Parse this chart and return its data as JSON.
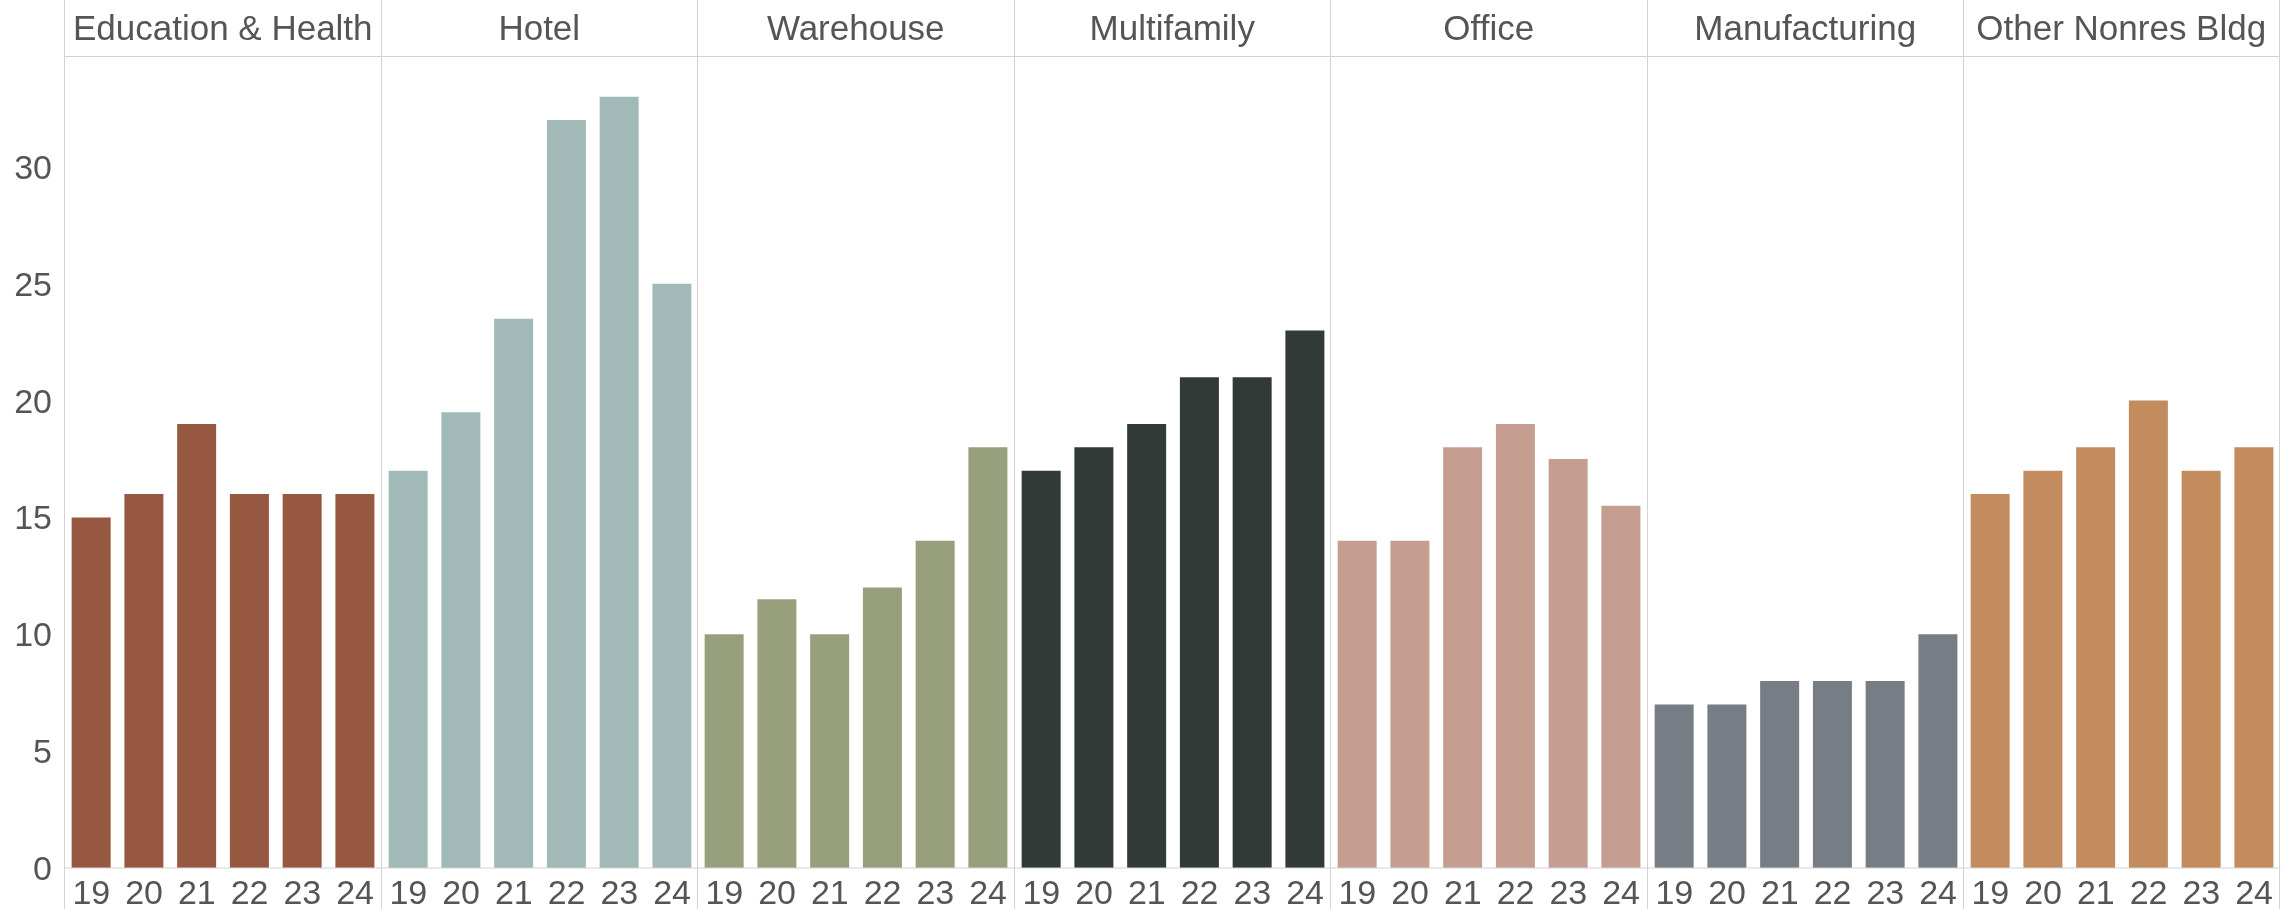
{
  "chart_data": [
    {
      "type": "bar",
      "title": "Education & Health",
      "categories": [
        "19",
        "20",
        "21",
        "22",
        "23",
        "24"
      ],
      "values": [
        15,
        16,
        19,
        16,
        16,
        16
      ],
      "color": "#965840",
      "ylim": [
        0,
        34.7
      ],
      "yticks": [
        0,
        5,
        10,
        15,
        20,
        25,
        30
      ]
    },
    {
      "type": "bar",
      "title": "Hotel",
      "categories": [
        "19",
        "20",
        "21",
        "22",
        "23",
        "24"
      ],
      "values": [
        17,
        19.5,
        23.5,
        32,
        33,
        25
      ],
      "color": "#a2bab7",
      "ylim": [
        0,
        34.7
      ],
      "yticks": [
        0,
        5,
        10,
        15,
        20,
        25,
        30
      ],
      "tick_labels": "x"
    },
    {
      "type": "bar",
      "title": "Warehouse",
      "categories": [
        "19",
        "20",
        "21",
        "22",
        "23",
        "24"
      ],
      "values": [
        10,
        11.5,
        10,
        12,
        14,
        18
      ],
      "color": "#989f7d",
      "ylim": [
        0,
        34.7
      ],
      "yticks": [
        0,
        5,
        10,
        15,
        20,
        25,
        30
      ],
      "tick_labels": "x"
    },
    {
      "type": "bar",
      "title": "Multifamily",
      "categories": [
        "19",
        "20",
        "21",
        "22",
        "23",
        "24"
      ],
      "values": [
        17,
        18,
        19,
        21,
        21,
        23
      ],
      "color": "#323a38",
      "ylim": [
        0,
        34.7
      ],
      "yticks": [
        0,
        5,
        10,
        15,
        20,
        25,
        30
      ],
      "tick_labels": "x"
    },
    {
      "type": "bar",
      "title": "Office",
      "categories": [
        "19",
        "20",
        "21",
        "22",
        "23",
        "24"
      ],
      "values": [
        14,
        14,
        18,
        19,
        17.5,
        15.5
      ],
      "color": "#c59e91",
      "ylim": [
        0,
        34.7
      ],
      "yticks": [
        0,
        5,
        10,
        15,
        20,
        25,
        30
      ],
      "tick_labels": "x"
    },
    {
      "type": "bar",
      "title": "Manufacturing",
      "categories": [
        "19",
        "20",
        "21",
        "22",
        "23",
        "24"
      ],
      "values": [
        7,
        7,
        8,
        8,
        8,
        10
      ],
      "color": "#767d85",
      "ylim": [
        0,
        34.7
      ],
      "yticks": [
        0,
        5,
        10,
        15,
        20,
        25,
        30
      ],
      "tick_labels": "x"
    },
    {
      "type": "bar",
      "title": "Other Nonres Bldg",
      "categories": [
        "19",
        "20",
        "21",
        "22",
        "23",
        "24"
      ],
      "values": [
        16,
        17,
        18,
        20,
        17,
        18
      ],
      "color": "#c28c5f",
      "ylim": [
        0,
        34.7
      ],
      "yticks": [
        0,
        5,
        10,
        15,
        20,
        25,
        30
      ],
      "tick_labels": "x"
    }
  ]
}
